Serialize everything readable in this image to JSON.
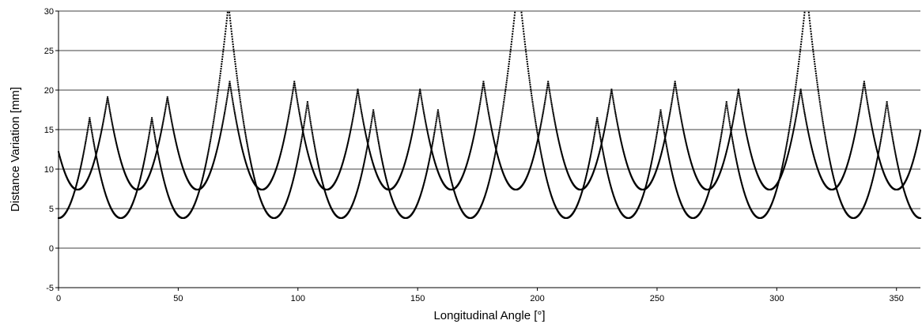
{
  "chart_data": {
    "type": "scatter",
    "title": "",
    "xlabel": "Longitudinal Angle [°]",
    "ylabel": "Distance Variation [mm]",
    "xlim": [
      0,
      360
    ],
    "ylim": [
      -5,
      30
    ],
    "x_ticks": [
      0,
      50,
      100,
      150,
      200,
      250,
      300,
      350
    ],
    "y_ticks": [
      -5,
      0,
      5,
      10,
      15,
      20,
      25,
      30
    ],
    "grid": "horizontal",
    "legend": "none",
    "marker_color": "#000000",
    "series": [
      {
        "minima_x": [
          0,
          26,
          52,
          90,
          118,
          145,
          172,
          212,
          238,
          265,
          293,
          332,
          360
        ],
        "minimum_y": 3.8
      },
      {
        "minima_x": [
          8,
          33,
          58,
          85,
          112,
          138,
          164,
          191,
          218,
          244,
          271,
          297,
          323,
          350
        ],
        "minimum_y": 7.4
      }
    ]
  }
}
